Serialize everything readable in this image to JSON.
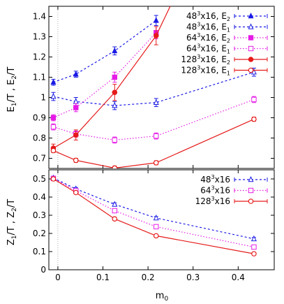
{
  "chart_data": [
    {
      "type": "line",
      "panel": "top",
      "ylabel": "E1/T , E2/T",
      "xlim": [
        -0.02,
        0.48
      ],
      "ylim": [
        0.65,
        1.45
      ],
      "yticks": [
        0.7,
        0.8,
        0.9,
        1.0,
        1.1,
        1.2,
        1.3,
        1.4
      ],
      "ytick_labels": [
        "0.7",
        "0.8",
        "0.9",
        "1",
        "1.1",
        "1.2",
        "1.3",
        "1.4"
      ],
      "legend_position": "top-right",
      "series": [
        {
          "name": "48^3x16, E2",
          "label_base": "48",
          "label_sup": "3",
          "label_suffix": "x16, E",
          "label_sub": "2",
          "color": "#1a1ae6",
          "dash": "3,3",
          "marker": "triangle",
          "filled": true,
          "x": [
            -0.01,
            0.04,
            0.126,
            0.218
          ],
          "y": [
            1.075,
            1.115,
            1.23,
            1.38
          ],
          "err": [
            0.015,
            0.015,
            0.02,
            0.025
          ]
        },
        {
          "name": "48^3x16, E1",
          "label_base": "48",
          "label_sup": "3",
          "label_suffix": "x16, E",
          "label_sub": "1",
          "color": "#1a1ae6",
          "dash": "3,3",
          "marker": "triangle",
          "filled": false,
          "x": [
            -0.01,
            0.04,
            0.126,
            0.218,
            0.435
          ],
          "y": [
            1.005,
            0.98,
            0.96,
            0.975,
            1.125
          ],
          "err": [
            0.02,
            0.02,
            0.02,
            0.02,
            0.02
          ]
        },
        {
          "name": "64^3x16, E2",
          "label_base": "64",
          "label_sup": "3",
          "label_suffix": "x16, E",
          "label_sub": "2",
          "color": "#e61ae6",
          "dash": "1.5,2.5",
          "marker": "square",
          "filled": true,
          "x": [
            -0.01,
            0.04,
            0.126,
            0.218
          ],
          "y": [
            0.9,
            0.95,
            1.1,
            1.32
          ],
          "err": [
            0.015,
            0.02,
            0.025,
            0.03
          ]
        },
        {
          "name": "64^3x16, E1",
          "label_base": "64",
          "label_sup": "3",
          "label_suffix": "x16, E",
          "label_sub": "1",
          "color": "#e61ae6",
          "dash": "1.5,2.5",
          "marker": "square",
          "filled": false,
          "x": [
            -0.01,
            0.04,
            0.126,
            0.218,
            0.435
          ],
          "y": [
            0.855,
            0.82,
            0.79,
            0.81,
            0.99
          ],
          "err": [
            0.015,
            0.015,
            0.015,
            0.015,
            0.015
          ]
        },
        {
          "name": "128^3x16, E2",
          "label_base": "128",
          "label_sup": "3",
          "label_suffix": "x16, E",
          "label_sub": "2",
          "color": "#e61a1a",
          "dash": "",
          "marker": "circle",
          "filled": true,
          "x": [
            -0.01,
            0.04,
            0.126,
            0.218,
            0.26
          ],
          "y": [
            0.75,
            0.815,
            1.025,
            1.305,
            1.5
          ],
          "err": [
            0.02,
            0.025,
            0.04,
            0.045,
            0
          ]
        },
        {
          "name": "128^3x16, E1",
          "label_base": "128",
          "label_sup": "3",
          "label_suffix": "x16, E",
          "label_sub": "1",
          "color": "#e61a1a",
          "dash": "",
          "marker": "circle",
          "filled": false,
          "x": [
            -0.01,
            0.04,
            0.126,
            0.218,
            0.435
          ],
          "y": [
            0.738,
            0.69,
            0.652,
            0.678,
            0.893
          ],
          "err": [
            0.01,
            0.01,
            0.01,
            0.01,
            0.01
          ]
        }
      ]
    },
    {
      "type": "line",
      "panel": "bottom",
      "ylabel": "Z1/T , Z2/T",
      "xlabel": "m0",
      "xlim": [
        -0.02,
        0.48
      ],
      "ylim": [
        0,
        0.55
      ],
      "xticks": [
        0,
        0.1,
        0.2,
        0.3,
        0.4
      ],
      "xtick_labels": [
        "0",
        "0.1",
        "0.2",
        "0.3",
        "0.4"
      ],
      "yticks": [
        0,
        0.1,
        0.2,
        0.3,
        0.4,
        0.5
      ],
      "ytick_labels": [
        "0",
        "0.1",
        "0.2",
        "0.3",
        "0.4",
        "0.5"
      ],
      "legend_position": "top-right",
      "series": [
        {
          "name": "48^3x16",
          "label_base": "48",
          "label_sup": "3",
          "label_suffix": "x16",
          "label_sub": "",
          "color": "#1a1ae6",
          "dash": "3,3",
          "marker": "triangle",
          "filled": false,
          "x": [
            -0.01,
            0.04,
            0.126,
            0.218,
            0.435
          ],
          "y": [
            0.505,
            0.445,
            0.36,
            0.285,
            0.17
          ],
          "err": [
            0.01,
            0.008,
            0.008,
            0.008,
            0.008
          ]
        },
        {
          "name": "64^3x16",
          "label_base": "64",
          "label_sup": "3",
          "label_suffix": "x16",
          "label_sub": "",
          "color": "#e61ae6",
          "dash": "1.5,2.5",
          "marker": "square",
          "filled": false,
          "x": [
            -0.01,
            0.04,
            0.126,
            0.218,
            0.435
          ],
          "y": [
            0.503,
            0.435,
            0.325,
            0.237,
            0.125
          ],
          "err": [
            0.01,
            0.008,
            0.008,
            0.008,
            0.008
          ]
        },
        {
          "name": "128^3x16",
          "label_base": "128",
          "label_sup": "3",
          "label_suffix": "x16",
          "label_sub": "",
          "color": "#e61a1a",
          "dash": "",
          "marker": "circle",
          "filled": false,
          "x": [
            -0.01,
            0.04,
            0.126,
            0.218,
            0.435
          ],
          "y": [
            0.5,
            0.425,
            0.28,
            0.187,
            0.088
          ],
          "err": [
            0.01,
            0.008,
            0.008,
            0.006,
            0.006
          ]
        }
      ]
    }
  ]
}
